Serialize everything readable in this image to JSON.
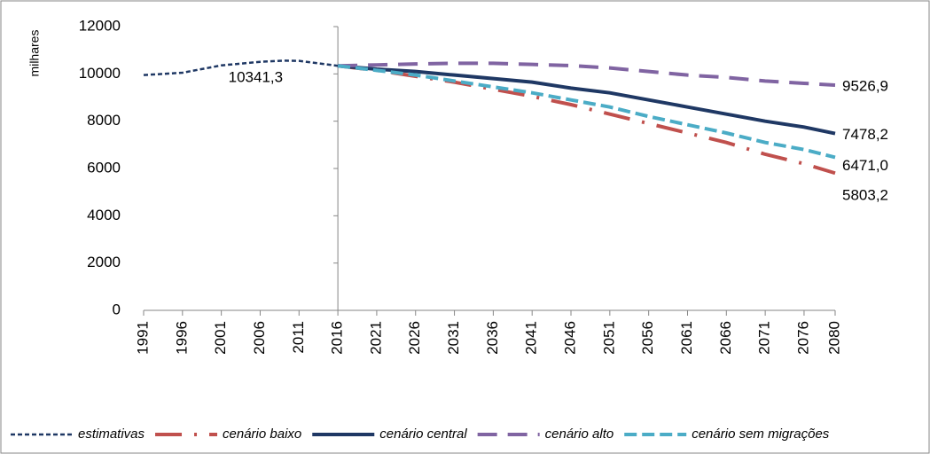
{
  "chart_data": {
    "type": "line",
    "y_label": "milhares",
    "xlim": [
      1991,
      2080
    ],
    "xticks": [
      1991,
      1996,
      2001,
      2006,
      2011,
      2016,
      2021,
      2026,
      2031,
      2036,
      2041,
      2046,
      2051,
      2056,
      2061,
      2066,
      2071,
      2076,
      2080
    ],
    "ylim": [
      0,
      12000
    ],
    "yticks": [
      0,
      2000,
      4000,
      6000,
      8000,
      10000,
      12000
    ],
    "y_axis_at": 2016,
    "series": [
      {
        "name": "estimativas",
        "color": "#1f3864",
        "style": "dotted",
        "x": [
          1991,
          1996,
          2001,
          2006,
          2009,
          2011,
          2016
        ],
        "values": [
          9950,
          10050,
          10360,
          10510,
          10560,
          10550,
          10341.3
        ],
        "end_label": "10341,3"
      },
      {
        "name": "cenário baixo",
        "color": "#c0504d",
        "style": "dashdot",
        "x": [
          2016,
          2021,
          2026,
          2031,
          2036,
          2041,
          2046,
          2051,
          2056,
          2061,
          2066,
          2071,
          2076,
          2080
        ],
        "values": [
          10341.3,
          10150,
          9900,
          9650,
          9350,
          9050,
          8700,
          8300,
          7900,
          7500,
          7100,
          6600,
          6200,
          5803.2
        ],
        "end_label": "5803,2"
      },
      {
        "name": "cenário central",
        "color": "#1f3864",
        "style": "solid",
        "x": [
          2016,
          2021,
          2026,
          2031,
          2036,
          2041,
          2046,
          2051,
          2056,
          2061,
          2066,
          2071,
          2076,
          2080
        ],
        "values": [
          10341.3,
          10200,
          10100,
          9950,
          9800,
          9650,
          9400,
          9200,
          8900,
          8600,
          8300,
          8000,
          7750,
          7478.2
        ],
        "end_label": "7478,2"
      },
      {
        "name": "cenário alto",
        "color": "#8064a2",
        "style": "longdash",
        "x": [
          2016,
          2021,
          2026,
          2031,
          2036,
          2041,
          2046,
          2051,
          2056,
          2061,
          2066,
          2071,
          2076,
          2080
        ],
        "values": [
          10341.3,
          10380,
          10420,
          10450,
          10450,
          10400,
          10350,
          10250,
          10100,
          9950,
          9850,
          9700,
          9600,
          9526.9
        ],
        "end_label": "9526,9"
      },
      {
        "name": "cenário sem migrações",
        "color": "#4bacc6",
        "style": "dash",
        "x": [
          2016,
          2021,
          2026,
          2031,
          2036,
          2041,
          2046,
          2051,
          2056,
          2061,
          2066,
          2071,
          2076,
          2080
        ],
        "values": [
          10341.3,
          10150,
          9950,
          9700,
          9450,
          9200,
          8900,
          8600,
          8200,
          7850,
          7500,
          7100,
          6800,
          6471.0
        ],
        "end_label": "6471,0"
      }
    ]
  }
}
